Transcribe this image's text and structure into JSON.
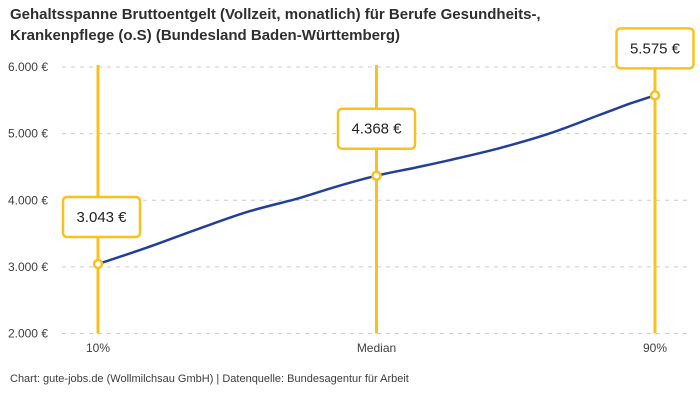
{
  "header": {
    "title_line1": "Gehaltsspanne Bruttoentgelt (Vollzeit, monatlich) für Berufe Gesundheits-,",
    "title_line2": "Krankenpflege (o.S) (Bundesland Baden-Württemberg)"
  },
  "footer": {
    "credit": "Chart: gute-jobs.de (Wollmilchsau GmbH) | Datenquelle: Bundesagentur für Arbeit"
  },
  "colors": {
    "accent_yellow": "#FAC01E",
    "curve_blue": "#233F9B",
    "grid": "#CCCCCC",
    "axis_text": "#3F3F3F",
    "value_text": "#222222",
    "box_fill": "#FFFFFF",
    "background": "#FFFFFF"
  },
  "chart_data": {
    "type": "line",
    "title": "Gehaltsspanne Bruttoentgelt (Vollzeit, monatlich) für Berufe Gesundheits-, Krankenpflege (o.S) (Bundesland Baden-Württemberg)",
    "x_categories": [
      "10%",
      "Median",
      "90%"
    ],
    "percentiles": [
      {
        "label": "10%",
        "value": 3043,
        "value_label": "3.043 €",
        "t": 0
      },
      {
        "label": "Median",
        "value": 4368,
        "value_label": "4.368 €",
        "t": 0.5
      },
      {
        "label": "90%",
        "value": 5575,
        "value_label": "5.575 €",
        "t": 1
      }
    ],
    "curve_samples": [
      [
        0,
        3043
      ],
      [
        0.09,
        3295
      ],
      [
        0.18,
        3570
      ],
      [
        0.27,
        3830
      ],
      [
        0.36,
        4030
      ],
      [
        0.43,
        4210
      ],
      [
        0.5,
        4368
      ],
      [
        0.57,
        4490
      ],
      [
        0.63,
        4600
      ],
      [
        0.72,
        4780
      ],
      [
        0.81,
        5000
      ],
      [
        0.9,
        5280
      ],
      [
        0.955,
        5450
      ],
      [
        1,
        5575
      ]
    ],
    "ylim": [
      2000,
      6000
    ],
    "y_ticks": [
      {
        "value": 6000,
        "label": "6.000 €"
      },
      {
        "value": 5000,
        "label": "5.000 €"
      },
      {
        "value": 4000,
        "label": "4.000 €"
      },
      {
        "value": 3000,
        "label": "3.000 €"
      },
      {
        "value": 2000,
        "label": "2.000 €"
      }
    ],
    "grid": "dashed-horizontal",
    "legend": "none"
  }
}
